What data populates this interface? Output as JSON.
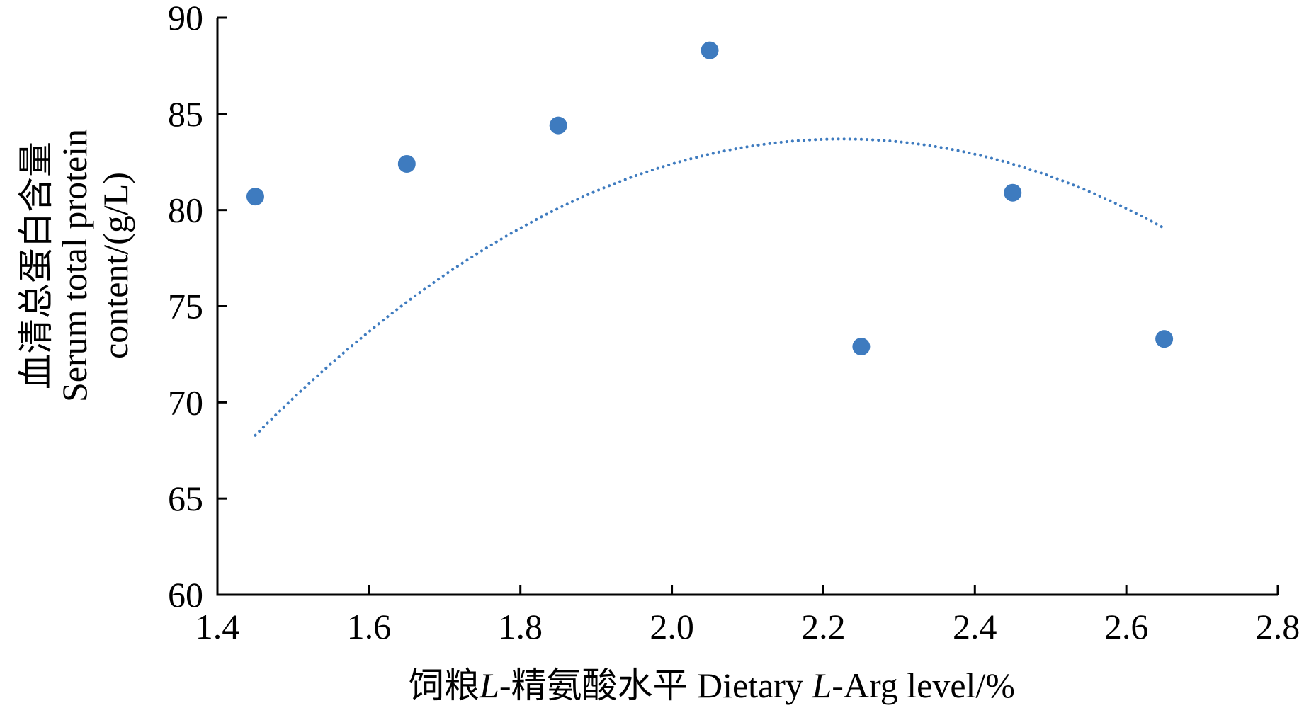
{
  "chart_data": {
    "type": "scatter",
    "xlabel_parts": [
      {
        "text": "饲粮",
        "italic": false
      },
      {
        "text": "L",
        "italic": true
      },
      {
        "text": "-精氨酸水平  Dietary ",
        "italic": false
      },
      {
        "text": "L",
        "italic": true
      },
      {
        "text": "-Arg level/%",
        "italic": false
      }
    ],
    "ylabel_lines": [
      "血清总蛋白含量",
      "Serum total protein",
      "content/(g/L)"
    ],
    "xlim": [
      1.4,
      2.8
    ],
    "ylim": [
      60,
      90
    ],
    "xticks": [
      "1.4",
      "1.6",
      "1.8",
      "2.0",
      "2.2",
      "2.4",
      "2.6",
      "2.8"
    ],
    "yticks": [
      "60",
      "65",
      "70",
      "75",
      "80",
      "85",
      "90"
    ],
    "grid": false,
    "series": [
      {
        "marker_color": "#3e7bbf",
        "x": [
          1.45,
          1.65,
          1.85,
          2.05,
          2.25,
          2.45,
          2.65
        ],
        "y": [
          80.7,
          82.4,
          84.4,
          88.3,
          72.9,
          80.9,
          73.3
        ]
      }
    ],
    "trendline": {
      "kind": "quadratic",
      "style": "dotted",
      "color": "#3e7bbf",
      "x_range": [
        1.45,
        2.65
      ],
      "coefficients": [
        -25.656,
        114.16,
        -43.3
      ]
    }
  }
}
